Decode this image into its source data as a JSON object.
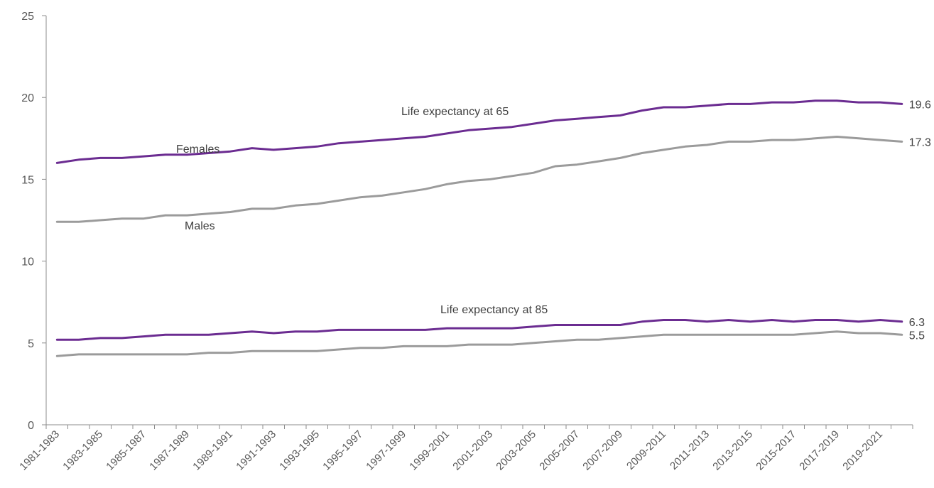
{
  "chart_data": {
    "type": "line",
    "title": "",
    "xlabel": "",
    "ylabel": "",
    "ylim": [
      0,
      25
    ],
    "yticks": [
      0,
      5,
      10,
      15,
      20,
      25
    ],
    "grid": false,
    "x": [
      "1981-1983",
      "1982-1984",
      "1983-1985",
      "1984-1986",
      "1985-1987",
      "1986-1988",
      "1987-1989",
      "1988-1990",
      "1989-1991",
      "1990-1992",
      "1991-1993",
      "1992-1994",
      "1993-1995",
      "1994-1996",
      "1995-1997",
      "1996-1998",
      "1997-1999",
      "1998-2000",
      "1999-2001",
      "2000-2002",
      "2001-2003",
      "2002-2004",
      "2003-2005",
      "2004-2006",
      "2005-2007",
      "2006-2008",
      "2007-2009",
      "2008-2010",
      "2009-2011",
      "2010-2012",
      "2011-2013",
      "2012-2014",
      "2013-2015",
      "2014-2016",
      "2015-2017",
      "2016-2018",
      "2017-2019",
      "2018-2020",
      "2019-2021",
      "2020-2022"
    ],
    "tick_labels": [
      "1981-1983",
      "1983-1985",
      "1985-1987",
      "1987-1989",
      "1989-1991",
      "1991-1993",
      "1993-1995",
      "1995-1997",
      "1997-1999",
      "1999-2001",
      "2001-2003",
      "2003-2005",
      "2005-2007",
      "2007-2009",
      "2009-2011",
      "2011-2013",
      "2013-2015",
      "2015-2017",
      "2017-2019",
      "2019-2021"
    ],
    "series": [
      {
        "name": "Females",
        "group": "65",
        "color": "#6b2c91",
        "end_label": "19.6",
        "values": [
          16.0,
          16.2,
          16.3,
          16.3,
          16.4,
          16.5,
          16.5,
          16.6,
          16.7,
          16.9,
          16.8,
          16.9,
          17.0,
          17.2,
          17.3,
          17.4,
          17.5,
          17.6,
          17.8,
          18.0,
          18.1,
          18.2,
          18.4,
          18.6,
          18.7,
          18.8,
          18.9,
          19.2,
          19.4,
          19.4,
          19.5,
          19.6,
          19.6,
          19.7,
          19.7,
          19.8,
          19.8,
          19.7,
          19.7,
          19.6
        ]
      },
      {
        "name": "Males",
        "group": "65",
        "color": "#9b9b9b",
        "end_label": "17.3",
        "values": [
          12.4,
          12.4,
          12.5,
          12.6,
          12.6,
          12.8,
          12.8,
          12.9,
          13.0,
          13.2,
          13.2,
          13.4,
          13.5,
          13.7,
          13.9,
          14.0,
          14.2,
          14.4,
          14.7,
          14.9,
          15.0,
          15.2,
          15.4,
          15.8,
          15.9,
          16.1,
          16.3,
          16.6,
          16.8,
          17.0,
          17.1,
          17.3,
          17.3,
          17.4,
          17.4,
          17.5,
          17.6,
          17.5,
          17.4,
          17.3
        ]
      },
      {
        "name": "Females",
        "group": "85",
        "color": "#6b2c91",
        "end_label": "6.3",
        "values": [
          5.2,
          5.2,
          5.3,
          5.3,
          5.4,
          5.5,
          5.5,
          5.5,
          5.6,
          5.7,
          5.6,
          5.7,
          5.7,
          5.8,
          5.8,
          5.8,
          5.8,
          5.8,
          5.9,
          5.9,
          5.9,
          5.9,
          6.0,
          6.1,
          6.1,
          6.1,
          6.1,
          6.3,
          6.4,
          6.4,
          6.3,
          6.4,
          6.3,
          6.4,
          6.3,
          6.4,
          6.4,
          6.3,
          6.4,
          6.3
        ]
      },
      {
        "name": "Males",
        "group": "85",
        "color": "#9b9b9b",
        "end_label": "5.5",
        "values": [
          4.2,
          4.3,
          4.3,
          4.3,
          4.3,
          4.3,
          4.3,
          4.4,
          4.4,
          4.5,
          4.5,
          4.5,
          4.5,
          4.6,
          4.7,
          4.7,
          4.8,
          4.8,
          4.8,
          4.9,
          4.9,
          4.9,
          5.0,
          5.1,
          5.2,
          5.2,
          5.3,
          5.4,
          5.5,
          5.5,
          5.5,
          5.5,
          5.5,
          5.5,
          5.5,
          5.6,
          5.7,
          5.6,
          5.6,
          5.5
        ]
      }
    ],
    "annotations": {
      "le65": "Life expectancy at 65",
      "le85": "Life expectancy at 85",
      "females": "Females",
      "males": "Males"
    }
  }
}
